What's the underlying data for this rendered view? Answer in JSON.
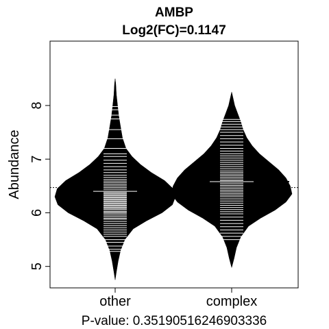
{
  "chart_data": {
    "type": "beanplot",
    "title": "AMBP",
    "subtitle": "Log2(FC)=0.1147",
    "ylabel": "Abundance",
    "xlabel": "P-value: 0.35190516246903336",
    "categories": [
      "other",
      "complex"
    ],
    "ylim": [
      4.6,
      9.2
    ],
    "yticks": [
      5,
      6,
      7,
      8
    ],
    "overall_mean": 6.47,
    "grid": false,
    "legend": "none",
    "series": [
      {
        "category": "other",
        "mean": 6.4,
        "min": 4.75,
        "max": 8.5,
        "density": [
          [
            4.75,
            0.0
          ],
          [
            4.9,
            0.02
          ],
          [
            5.1,
            0.05
          ],
          [
            5.3,
            0.09
          ],
          [
            5.5,
            0.16
          ],
          [
            5.7,
            0.3
          ],
          [
            5.85,
            0.52
          ],
          [
            6.0,
            0.78
          ],
          [
            6.15,
            0.95
          ],
          [
            6.3,
            1.0
          ],
          [
            6.45,
            0.96
          ],
          [
            6.6,
            0.82
          ],
          [
            6.75,
            0.6
          ],
          [
            6.9,
            0.42
          ],
          [
            7.05,
            0.28
          ],
          [
            7.2,
            0.18
          ],
          [
            7.4,
            0.12
          ],
          [
            7.6,
            0.09
          ],
          [
            7.8,
            0.06
          ],
          [
            8.0,
            0.04
          ],
          [
            8.2,
            0.02
          ],
          [
            8.4,
            0.01
          ],
          [
            8.5,
            0.0
          ]
        ],
        "points": [
          5.28,
          5.32,
          5.38,
          5.45,
          5.5,
          5.56,
          5.6,
          5.64,
          5.68,
          5.72,
          5.76,
          5.8,
          5.84,
          5.88,
          5.9,
          5.93,
          5.96,
          5.99,
          6.01,
          6.03,
          6.06,
          6.08,
          6.1,
          6.12,
          6.14,
          6.16,
          6.18,
          6.2,
          6.22,
          6.24,
          6.26,
          6.28,
          6.3,
          6.32,
          6.34,
          6.36,
          6.38,
          6.41,
          6.44,
          6.47,
          6.5,
          6.53,
          6.56,
          6.59,
          6.62,
          6.66,
          6.7,
          6.75,
          6.8,
          6.86,
          6.92,
          6.98,
          7.05,
          7.1,
          7.2,
          7.38,
          7.55,
          7.75,
          7.82,
          7.92,
          7.98
        ]
      },
      {
        "category": "complex",
        "mean": 6.58,
        "min": 4.98,
        "max": 8.25,
        "density": [
          [
            4.98,
            0.0
          ],
          [
            5.15,
            0.04
          ],
          [
            5.35,
            0.08
          ],
          [
            5.55,
            0.15
          ],
          [
            5.75,
            0.28
          ],
          [
            5.9,
            0.48
          ],
          [
            6.05,
            0.72
          ],
          [
            6.2,
            0.9
          ],
          [
            6.35,
            1.0
          ],
          [
            6.5,
            0.97
          ],
          [
            6.65,
            0.9
          ],
          [
            6.8,
            0.78
          ],
          [
            6.95,
            0.62
          ],
          [
            7.1,
            0.46
          ],
          [
            7.25,
            0.34
          ],
          [
            7.4,
            0.25
          ],
          [
            7.55,
            0.19
          ],
          [
            7.7,
            0.15
          ],
          [
            7.85,
            0.1
          ],
          [
            8.0,
            0.05
          ],
          [
            8.15,
            0.02
          ],
          [
            8.25,
            0.0
          ]
        ],
        "points": [
          5.5,
          5.56,
          5.62,
          5.68,
          5.74,
          5.8,
          5.86,
          5.92,
          5.98,
          6.02,
          6.06,
          6.1,
          6.14,
          6.18,
          6.22,
          6.26,
          6.3,
          6.33,
          6.36,
          6.39,
          6.42,
          6.45,
          6.48,
          6.51,
          6.54,
          6.57,
          6.6,
          6.63,
          6.66,
          6.69,
          6.72,
          6.75,
          6.78,
          6.82,
          6.86,
          6.9,
          6.94,
          6.98,
          7.02,
          7.06,
          7.1,
          7.15,
          7.2,
          7.26,
          7.32,
          7.38,
          7.44,
          7.5,
          7.55,
          7.6,
          7.65,
          7.7,
          7.74
        ]
      }
    ]
  }
}
